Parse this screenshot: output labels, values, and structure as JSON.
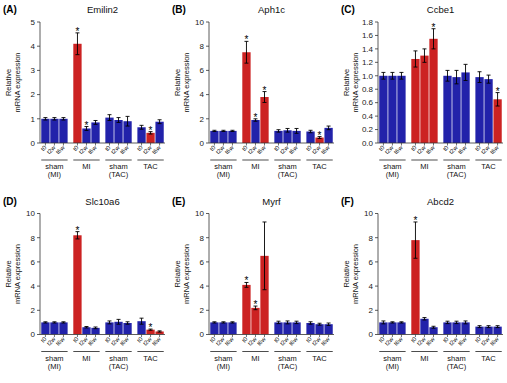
{
  "chart_data": [
    {
      "type": "bar",
      "title": "Emilin2",
      "y_label": "Relative\nmRNA expression",
      "categories": [
        "sham\n(MI)",
        "MI",
        "sham\n(TAC)",
        "TAC"
      ],
      "series": [
        {
          "name": "t0",
          "values": [
            1.0,
            4.1,
            1.05,
            0.65
          ],
          "errors": [
            0.05,
            0.45,
            0.12,
            0.08
          ],
          "colors": [
            "#2222aa",
            "#cc2222",
            "#2222aa",
            "#2222aa"
          ]
        },
        {
          "name": "t2w",
          "values": [
            1.0,
            0.6,
            0.95,
            0.42
          ],
          "errors": [
            0.05,
            0.08,
            0.1,
            0.05
          ],
          "colors": [
            "#2222aa",
            "#2222aa",
            "#2222aa",
            "#cc2222"
          ]
        },
        {
          "name": "t6w",
          "values": [
            1.0,
            0.85,
            0.9,
            0.88
          ],
          "errors": [
            0.05,
            0.08,
            0.2,
            0.08
          ],
          "colors": [
            "#2222aa",
            "#2222aa",
            "#2222aa",
            "#2222aa"
          ]
        }
      ],
      "ylim": [
        0,
        5
      ],
      "yticks": [
        0,
        1,
        2,
        3,
        4,
        5
      ],
      "grid": false,
      "annotations": [
        {
          "text": "(A)"
        },
        {
          "text": "*",
          "category": 1,
          "series": 0
        },
        {
          "text": "*",
          "category": 1,
          "series": 1
        },
        {
          "text": "*",
          "category": 3,
          "series": 1
        }
      ]
    },
    {
      "type": "bar",
      "title": "Aph1c",
      "y_label": "Relative\nmRNA expression",
      "categories": [
        "sham\n(MI)",
        "MI",
        "sham\n(TAC)",
        "TAC"
      ],
      "series": [
        {
          "name": "t0",
          "values": [
            1.0,
            7.5,
            1.0,
            0.95
          ],
          "errors": [
            0.05,
            0.9,
            0.1,
            0.1
          ],
          "colors": [
            "#2222aa",
            "#cc2222",
            "#2222aa",
            "#2222aa"
          ]
        },
        {
          "name": "t2w",
          "values": [
            1.0,
            1.9,
            1.05,
            0.45
          ],
          "errors": [
            0.05,
            0.1,
            0.15,
            0.08
          ],
          "colors": [
            "#2222aa",
            "#2222aa",
            "#2222aa",
            "#cc2222"
          ]
        },
        {
          "name": "t6w",
          "values": [
            1.0,
            3.8,
            1.0,
            1.25
          ],
          "errors": [
            0.05,
            0.45,
            0.2,
            0.15
          ],
          "colors": [
            "#2222aa",
            "#cc2222",
            "#2222aa",
            "#2222aa"
          ]
        }
      ],
      "ylim": [
        0,
        10
      ],
      "yticks": [
        0,
        2,
        4,
        6,
        8,
        10
      ],
      "grid": false,
      "annotations": [
        {
          "text": "(B)"
        },
        {
          "text": "*",
          "category": 1,
          "series": 0
        },
        {
          "text": "*",
          "category": 1,
          "series": 1
        },
        {
          "text": "*",
          "category": 1,
          "series": 2
        },
        {
          "text": "*",
          "category": 3,
          "series": 1
        }
      ]
    },
    {
      "type": "bar",
      "title": "Ccbe1",
      "y_label": "Relative\nmRNA expression",
      "categories": [
        "sham\n(MI)",
        "MI",
        "sham\n(TAC)",
        "TAC"
      ],
      "series": [
        {
          "name": "t0",
          "values": [
            1.0,
            1.25,
            1.0,
            0.98
          ],
          "errors": [
            0.05,
            0.12,
            0.08,
            0.08
          ],
          "colors": [
            "#2222aa",
            "#cc2222",
            "#2222aa",
            "#2222aa"
          ]
        },
        {
          "name": "t2w",
          "values": [
            1.0,
            1.3,
            0.98,
            0.95
          ],
          "errors": [
            0.05,
            0.1,
            0.1,
            0.06
          ],
          "colors": [
            "#2222aa",
            "#cc2222",
            "#2222aa",
            "#2222aa"
          ]
        },
        {
          "name": "t6w",
          "values": [
            1.0,
            1.55,
            1.05,
            0.65
          ],
          "errors": [
            0.05,
            0.15,
            0.12,
            0.1
          ],
          "colors": [
            "#2222aa",
            "#cc2222",
            "#2222aa",
            "#cc2222"
          ]
        }
      ],
      "ylim": [
        0,
        1.8
      ],
      "yticks": [
        {
          "value": 0,
          "label": "0.0"
        },
        0.2,
        0.4,
        0.6,
        0.8,
        {
          "value": 1,
          "label": "1.0"
        },
        1.2,
        1.4,
        1.6,
        1.8
      ],
      "grid": false,
      "annotations": [
        {
          "text": "(C)"
        },
        {
          "text": "*",
          "category": 1,
          "series": 2
        },
        {
          "text": "*",
          "category": 3,
          "series": 2
        }
      ]
    },
    {
      "type": "bar",
      "title": "Slc10a6",
      "y_label": "Relative\nmRNA expression",
      "categories": [
        "sham\n(MI)",
        "MI",
        "sham\n(TAC)",
        "TAC"
      ],
      "series": [
        {
          "name": "t0",
          "values": [
            1.0,
            8.2,
            1.0,
            1.1
          ],
          "errors": [
            0.05,
            0.3,
            0.12,
            0.25
          ],
          "colors": [
            "#2222aa",
            "#cc2222",
            "#2222aa",
            "#2222aa"
          ]
        },
        {
          "name": "t2w",
          "values": [
            1.0,
            0.6,
            1.05,
            0.4
          ],
          "errors": [
            0.05,
            0.06,
            0.2,
            0.05
          ],
          "colors": [
            "#2222aa",
            "#2222aa",
            "#2222aa",
            "#cc2222"
          ]
        },
        {
          "name": "t6w",
          "values": [
            1.0,
            0.55,
            0.95,
            0.25
          ],
          "errors": [
            0.05,
            0.07,
            0.1,
            0.05
          ],
          "colors": [
            "#2222aa",
            "#2222aa",
            "#2222aa",
            "#cc2222"
          ]
        }
      ],
      "ylim": [
        0,
        10
      ],
      "yticks": [
        0,
        2,
        4,
        6,
        8,
        10
      ],
      "grid": false,
      "annotations": [
        {
          "text": "(D)"
        },
        {
          "text": "*",
          "category": 1,
          "series": 0
        },
        {
          "text": "*",
          "category": 3,
          "series": 1
        }
      ]
    },
    {
      "type": "bar",
      "title": "Myrf",
      "y_label": "Relative\nmRNA expression",
      "categories": [
        "sham\n(MI)",
        "MI",
        "sham\n(TAC)",
        "TAC"
      ],
      "series": [
        {
          "name": "t0",
          "values": [
            1.0,
            4.1,
            1.0,
            0.95
          ],
          "errors": [
            0.05,
            0.2,
            0.1,
            0.1
          ],
          "colors": [
            "#2222aa",
            "#cc2222",
            "#2222aa",
            "#2222aa"
          ]
        },
        {
          "name": "t2w",
          "values": [
            1.0,
            2.2,
            1.0,
            0.85
          ],
          "errors": [
            0.05,
            0.15,
            0.12,
            0.08
          ],
          "colors": [
            "#2222aa",
            "#cc2222",
            "#2222aa",
            "#2222aa"
          ]
        },
        {
          "name": "t6w",
          "values": [
            1.0,
            6.5,
            1.0,
            0.85
          ],
          "errors": [
            0.05,
            2.8,
            0.1,
            0.1
          ],
          "colors": [
            "#2222aa",
            "#cc2222",
            "#2222aa",
            "#2222aa"
          ]
        }
      ],
      "ylim": [
        0,
        10
      ],
      "yticks": [
        0,
        2,
        4,
        6,
        8,
        10
      ],
      "grid": false,
      "annotations": [
        {
          "text": "(E)"
        },
        {
          "text": "*",
          "category": 1,
          "series": 0
        },
        {
          "text": "*",
          "category": 1,
          "series": 1
        }
      ]
    },
    {
      "type": "bar",
      "title": "Abcd2",
      "y_label": "Relative\nmRNA expression",
      "categories": [
        "sham\n(MI)",
        "MI",
        "sham\n(TAC)",
        "TAC"
      ],
      "series": [
        {
          "name": "t0",
          "values": [
            1.0,
            7.8,
            1.0,
            0.65
          ],
          "errors": [
            0.12,
            1.5,
            0.1,
            0.08
          ],
          "colors": [
            "#2222aa",
            "#cc2222",
            "#2222aa",
            "#2222aa"
          ]
        },
        {
          "name": "t2w",
          "values": [
            1.0,
            1.3,
            1.0,
            0.65
          ],
          "errors": [
            0.05,
            0.1,
            0.1,
            0.08
          ],
          "colors": [
            "#2222aa",
            "#2222aa",
            "#2222aa",
            "#2222aa"
          ]
        },
        {
          "name": "t6w",
          "values": [
            1.0,
            0.6,
            1.0,
            0.65
          ],
          "errors": [
            0.05,
            0.08,
            0.12,
            0.08
          ],
          "colors": [
            "#2222aa",
            "#2222aa",
            "#2222aa",
            "#2222aa"
          ]
        }
      ],
      "ylim": [
        0,
        10
      ],
      "yticks": [
        0,
        2,
        4,
        6,
        8,
        10
      ],
      "grid": false,
      "annotations": [
        {
          "text": "(F)"
        },
        {
          "text": "*",
          "category": 1,
          "series": 0
        }
      ]
    }
  ]
}
